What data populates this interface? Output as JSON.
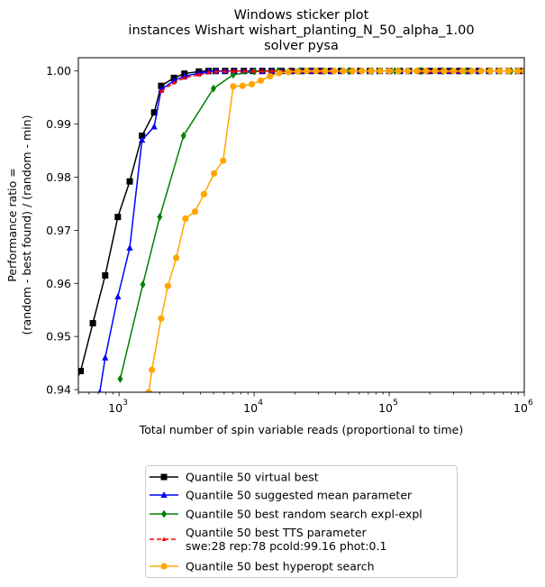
{
  "chart_data": {
    "type": "line",
    "title": [
      "Windows sticker plot",
      "instances Wishart wishart_planting_N_50_alpha_1.00",
      "solver pysa"
    ],
    "xlabel": "Total number of spin variable reads (proportional to time)",
    "ylabel": [
      "Performance ratio =",
      "(random - best found) / (random - min)"
    ],
    "xscale": "log",
    "xlim": [
      500,
      1000000
    ],
    "ylim": [
      0.9395,
      1.0025
    ],
    "xticks": [
      {
        "value": 1000,
        "base": "10",
        "exp": "3"
      },
      {
        "value": 10000,
        "base": "10",
        "exp": "4"
      },
      {
        "value": 100000,
        "base": "10",
        "exp": "5"
      },
      {
        "value": 1000000,
        "base": "10",
        "exp": "6"
      }
    ],
    "yticks": [
      0.94,
      0.95,
      0.96,
      0.97,
      0.98,
      0.99,
      1.0
    ],
    "ytick_labels": [
      "0.94",
      "0.95",
      "0.96",
      "0.97",
      "0.98",
      "0.99",
      "1.00"
    ],
    "grid": false,
    "legend_position": "below plot",
    "series": [
      {
        "name": "Quantile 50 virtual best",
        "color": "#000000",
        "marker": "square",
        "line": "solid",
        "points": [
          [
            440,
            0.9395
          ],
          [
            520,
            0.9435
          ],
          [
            640,
            0.9525
          ],
          [
            790,
            0.9615
          ],
          [
            980,
            0.9725
          ],
          [
            1200,
            0.9792
          ],
          [
            1480,
            0.9878
          ],
          [
            1820,
            0.9922
          ],
          [
            2050,
            0.9972
          ],
          [
            2550,
            0.9987
          ],
          [
            3050,
            0.9995
          ],
          [
            3900,
            0.9999
          ],
          [
            4600,
            1.0
          ],
          [
            5200,
            1.0
          ],
          [
            6100,
            1.0
          ],
          [
            7100,
            1.0
          ],
          [
            8400,
            1.0
          ],
          [
            9800,
            1.0
          ],
          [
            11500,
            1.0
          ],
          [
            13500,
            1.0
          ],
          [
            16000,
            1.0
          ],
          [
            19000,
            1.0
          ],
          [
            22500,
            1.0
          ],
          [
            26500,
            1.0
          ],
          [
            31000,
            1.0
          ],
          [
            37000,
            1.0
          ],
          [
            44000,
            1.0
          ],
          [
            52000,
            1.0
          ],
          [
            61000,
            1.0
          ],
          [
            72000,
            1.0
          ],
          [
            85000,
            1.0
          ],
          [
            100000,
            1.0
          ],
          [
            120000,
            1.0
          ],
          [
            140000,
            1.0
          ],
          [
            170000,
            1.0
          ],
          [
            200000,
            1.0
          ],
          [
            240000,
            1.0
          ],
          [
            280000,
            1.0
          ],
          [
            330000,
            1.0
          ],
          [
            390000,
            1.0
          ],
          [
            460000,
            1.0
          ],
          [
            550000,
            1.0
          ],
          [
            650000,
            1.0
          ],
          [
            770000,
            1.0
          ],
          [
            900000,
            1.0
          ],
          [
            1000000,
            1.0
          ]
        ]
      },
      {
        "name": "Quantile 50 suggested mean parameter",
        "color": "#0000ff",
        "marker": "triangle",
        "line": "solid",
        "points": [
          [
            720,
            0.9395
          ],
          [
            790,
            0.946
          ],
          [
            980,
            0.9575
          ],
          [
            1200,
            0.9667
          ],
          [
            1480,
            0.987
          ],
          [
            1820,
            0.9895
          ],
          [
            2050,
            0.9965
          ],
          [
            2550,
            0.9982
          ],
          [
            3050,
            0.999
          ],
          [
            3900,
            0.9996
          ],
          [
            4600,
            0.9999
          ],
          [
            5200,
            1.0
          ],
          [
            6100,
            1.0
          ],
          [
            7100,
            1.0
          ],
          [
            8400,
            1.0
          ],
          [
            9800,
            1.0
          ],
          [
            11500,
            1.0
          ],
          [
            13500,
            1.0
          ],
          [
            16000,
            1.0
          ],
          [
            19000,
            1.0
          ],
          [
            22500,
            1.0
          ],
          [
            26500,
            1.0
          ],
          [
            31000,
            1.0
          ],
          [
            37000,
            1.0
          ],
          [
            44000,
            1.0
          ],
          [
            52000,
            1.0
          ],
          [
            61000,
            1.0
          ],
          [
            72000,
            1.0
          ],
          [
            85000,
            1.0
          ],
          [
            100000,
            1.0
          ],
          [
            120000,
            1.0
          ],
          [
            140000,
            1.0
          ],
          [
            170000,
            1.0
          ],
          [
            200000,
            1.0
          ],
          [
            240000,
            1.0
          ],
          [
            280000,
            1.0
          ],
          [
            330000,
            1.0
          ],
          [
            390000,
            1.0
          ],
          [
            460000,
            1.0
          ],
          [
            550000,
            1.0
          ],
          [
            650000,
            1.0
          ],
          [
            770000,
            1.0
          ],
          [
            900000,
            1.0
          ],
          [
            1000000,
            1.0
          ]
        ]
      },
      {
        "name": "Quantile 50  best random search expl-expl",
        "color": "#008000",
        "marker": "diamond",
        "line": "solid",
        "points": [
          [
            1020,
            0.942
          ],
          [
            1500,
            0.9598
          ],
          [
            2000,
            0.9725
          ],
          [
            3000,
            0.9878
          ],
          [
            5000,
            0.9967
          ],
          [
            7000,
            0.9993
          ],
          [
            10000,
            0.9999
          ],
          [
            15000,
            1.0
          ],
          [
            22000,
            1.0
          ],
          [
            33000,
            1.0
          ],
          [
            50000,
            1.0
          ],
          [
            75000,
            1.0
          ],
          [
            110000,
            1.0
          ],
          [
            170000,
            1.0
          ],
          [
            250000,
            1.0
          ],
          [
            370000,
            1.0
          ],
          [
            550000,
            1.0
          ],
          [
            800000,
            1.0
          ],
          [
            1000000,
            1.0
          ]
        ]
      },
      {
        "name": "Quantile 50 best TTS parameter\nswe:28 rep:78 pcold:99.16 phot:0.1",
        "color": "#ff0000",
        "marker": "triangle-small",
        "line": "dashed",
        "points": [
          [
            2050,
            0.9962
          ],
          [
            2550,
            0.9978
          ],
          [
            3050,
            0.9987
          ],
          [
            3900,
            0.9993
          ],
          [
            4600,
            0.9997
          ],
          [
            5200,
            0.9999
          ],
          [
            6100,
            1.0
          ],
          [
            7100,
            1.0
          ],
          [
            8400,
            1.0
          ],
          [
            9800,
            1.0
          ],
          [
            11500,
            1.0
          ],
          [
            13500,
            1.0
          ],
          [
            16000,
            1.0
          ],
          [
            19000,
            1.0
          ],
          [
            22500,
            1.0
          ],
          [
            26500,
            1.0
          ],
          [
            31000,
            1.0
          ],
          [
            37000,
            1.0
          ],
          [
            44000,
            1.0
          ],
          [
            52000,
            1.0
          ],
          [
            61000,
            1.0
          ],
          [
            72000,
            1.0
          ],
          [
            85000,
            1.0
          ],
          [
            100000,
            1.0
          ],
          [
            120000,
            1.0
          ],
          [
            140000,
            1.0
          ],
          [
            170000,
            1.0
          ],
          [
            200000,
            1.0
          ],
          [
            240000,
            1.0
          ],
          [
            280000,
            1.0
          ],
          [
            330000,
            1.0
          ],
          [
            390000,
            1.0
          ],
          [
            460000,
            1.0
          ],
          [
            550000,
            1.0
          ],
          [
            650000,
            1.0
          ],
          [
            770000,
            1.0
          ],
          [
            900000,
            1.0
          ],
          [
            1000000,
            1.0
          ]
        ]
      },
      {
        "name": "Quantile 50 best hyperopt search",
        "color": "#ffa500",
        "marker": "circle",
        "line": "solid",
        "points": [
          [
            1660,
            0.9395
          ],
          [
            1750,
            0.9437
          ],
          [
            2050,
            0.9534
          ],
          [
            2300,
            0.9595
          ],
          [
            2650,
            0.9648
          ],
          [
            3100,
            0.9722
          ],
          [
            3650,
            0.9735
          ],
          [
            4250,
            0.9768
          ],
          [
            5050,
            0.9807
          ],
          [
            5900,
            0.9831
          ],
          [
            7000,
            0.9971
          ],
          [
            8200,
            0.9972
          ],
          [
            9600,
            0.9975
          ],
          [
            11200,
            0.9982
          ],
          [
            13100,
            0.999
          ],
          [
            15300,
            0.9996
          ],
          [
            17900,
            0.9998
          ],
          [
            21000,
            0.9999
          ],
          [
            24500,
            1.0
          ],
          [
            28700,
            1.0
          ],
          [
            33500,
            1.0
          ],
          [
            39200,
            1.0
          ],
          [
            45800,
            1.0
          ],
          [
            53600,
            1.0
          ],
          [
            62700,
            1.0
          ],
          [
            73300,
            1.0
          ],
          [
            85700,
            1.0
          ],
          [
            100000,
            1.0
          ],
          [
            117000,
            1.0
          ],
          [
            137000,
            1.0
          ],
          [
            160000,
            1.0
          ],
          [
            187000,
            1.0
          ],
          [
            219000,
            1.0
          ],
          [
            256000,
            1.0
          ],
          [
            300000,
            1.0
          ],
          [
            350000,
            1.0
          ],
          [
            410000,
            1.0
          ],
          [
            480000,
            1.0
          ],
          [
            560000,
            1.0
          ],
          [
            655000,
            1.0
          ],
          [
            765000,
            1.0
          ],
          [
            895000,
            1.0
          ],
          [
            1000000,
            1.0
          ]
        ]
      }
    ]
  }
}
